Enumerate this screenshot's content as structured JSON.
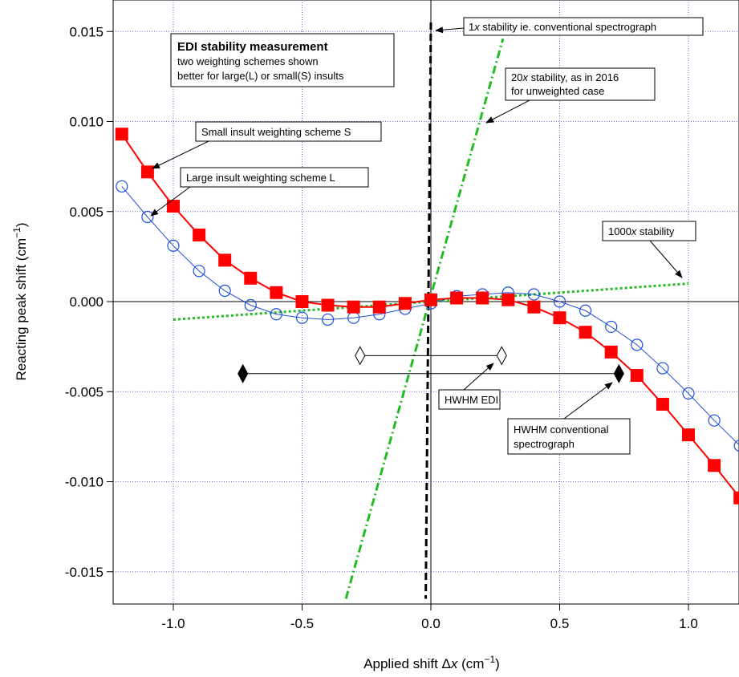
{
  "chart_data": {
    "type": "scatter",
    "title": "",
    "xlabel": {
      "prefix": "Applied shift Δ",
      "var": "x",
      "unit_pre": " (cm",
      "sup": "−1",
      "unit_post": ")"
    },
    "ylabel": {
      "text": "Reacting peak shift (cm",
      "sup": "−1",
      "post": ")"
    },
    "xlim": [
      -1.23,
      1.2
    ],
    "ylim": [
      -0.0165,
      0.0165
    ],
    "grid": true,
    "x_ticks": [
      -1.0,
      -0.5,
      0.0,
      0.5,
      1.0
    ],
    "x_tick_labels": [
      "-1.0",
      "-0.5",
      "0.0",
      "0.5",
      "1.0"
    ],
    "y_ticks": [
      0.015,
      0.01,
      0.005,
      0.0,
      -0.005,
      -0.01,
      -0.015
    ],
    "y_tick_labels": [
      "0.015",
      "0.010",
      "0.005",
      "0.000",
      "-0.005",
      "-0.010",
      "-0.015"
    ],
    "colors": {
      "series_S": "#ff0000",
      "series_L": "#1f4fd8",
      "green": "#22bb22",
      "grid": "#6b6bdb"
    },
    "series": [
      {
        "id": "S",
        "marker": "square",
        "x": [
          -1.2,
          -1.1,
          -1.0,
          -0.9,
          -0.8,
          -0.7,
          -0.6,
          -0.5,
          -0.4,
          -0.3,
          -0.2,
          -0.1,
          0.0,
          0.1,
          0.2,
          0.3,
          0.4,
          0.5,
          0.6,
          0.7,
          0.8,
          0.9,
          1.0,
          1.1,
          1.2
        ],
        "values": [
          0.0093,
          0.0072,
          0.0053,
          0.0037,
          0.0023,
          0.0013,
          0.0005,
          0.0,
          -0.0002,
          -0.0003,
          -0.0003,
          -0.0001,
          0.0001,
          0.0002,
          0.0002,
          0.0001,
          -0.0003,
          -0.0009,
          -0.0017,
          -0.0028,
          -0.0041,
          -0.0057,
          -0.0074,
          -0.0091,
          -0.0109
        ]
      },
      {
        "id": "L",
        "marker": "circle",
        "x": [
          -1.2,
          -1.1,
          -1.0,
          -0.9,
          -0.8,
          -0.7,
          -0.6,
          -0.5,
          -0.4,
          -0.3,
          -0.2,
          -0.1,
          0.0,
          0.1,
          0.2,
          0.3,
          0.4,
          0.5,
          0.6,
          0.7,
          0.8,
          0.9,
          1.0,
          1.1,
          1.2
        ],
        "values": [
          0.0064,
          0.0047,
          0.0031,
          0.0017,
          0.0006,
          -0.0002,
          -0.0007,
          -0.0009,
          -0.001,
          -0.0009,
          -0.0007,
          -0.0004,
          -0.0001,
          0.0003,
          0.0004,
          0.0005,
          0.0004,
          0.0,
          -0.0005,
          -0.0014,
          -0.0024,
          -0.0037,
          -0.0051,
          -0.0066,
          -0.008
        ]
      }
    ],
    "reference_lines": [
      {
        "id": "1x",
        "style": "dashed",
        "color": "#000000",
        "points": [
          [
            0.0,
            0.0155
          ],
          [
            -0.02,
            -0.0165
          ]
        ]
      },
      {
        "id": "20x",
        "style": "dash-dot",
        "color": "#22bb22",
        "points": [
          [
            -0.33,
            -0.0165
          ],
          [
            0.28,
            0.0146
          ]
        ]
      },
      {
        "id": "1000x",
        "style": "dotted",
        "color": "#22bb22",
        "points": [
          [
            -1.0,
            -0.001
          ],
          [
            1.0,
            0.001
          ]
        ]
      }
    ],
    "hwhm_bars": [
      {
        "id": "edi",
        "y": -0.003,
        "x": [
          -0.275,
          0.275
        ],
        "fill": "#ffffff"
      },
      {
        "id": "conventional",
        "y": -0.004,
        "x": [
          -0.73,
          0.73
        ],
        "fill": "#000000"
      }
    ],
    "annotations": {
      "title_box": {
        "title": "EDI stability measurement",
        "line1": "two weighting schemes shown",
        "line2": "better for large(L) or small(S) insults"
      },
      "one_x": {
        "pre": "1",
        "var": "x",
        "post": " stability ie. conventional spectrograph"
      },
      "twenty_x": {
        "line1_pre": "20",
        "line1_var": "x",
        "line1_post": " stability, as in 2016",
        "line2": "for unweighted case"
      },
      "thousand_x": {
        "pre": "1000",
        "var": "x",
        "post": " stability"
      },
      "small_insult": "Small insult weighting scheme S",
      "large_insult": "Large insult weighting scheme L",
      "hwhm_edi": "HWHM EDI",
      "hwhm_conv_line1": "HWHM conventional",
      "hwhm_conv_line2": "spectrograph"
    }
  }
}
